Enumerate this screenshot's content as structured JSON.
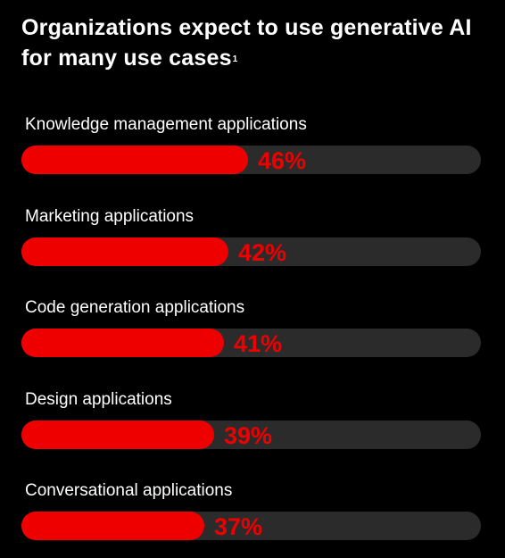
{
  "title": "Organizations expect to use generative AI for many use cases",
  "footnote_marker": "1",
  "colors": {
    "background": "#000000",
    "track": "#2b2b2b",
    "bar": "#ee0000",
    "value_text": "#ee0000",
    "label_text": "#ffffff"
  },
  "chart_data": {
    "type": "bar",
    "orientation": "horizontal",
    "title": "Organizations expect to use generative AI for many use cases",
    "categories": [
      "Knowledge management applications",
      "Marketing applications",
      "Code generation applications",
      "Design applications",
      "Conversational applications"
    ],
    "values": [
      46,
      42,
      41,
      39,
      37
    ],
    "value_labels": [
      "46%",
      "42%",
      "41%",
      "39%",
      "37%"
    ],
    "unit": "%",
    "xlim": [
      0,
      100
    ],
    "grid": false,
    "legend": "none"
  }
}
